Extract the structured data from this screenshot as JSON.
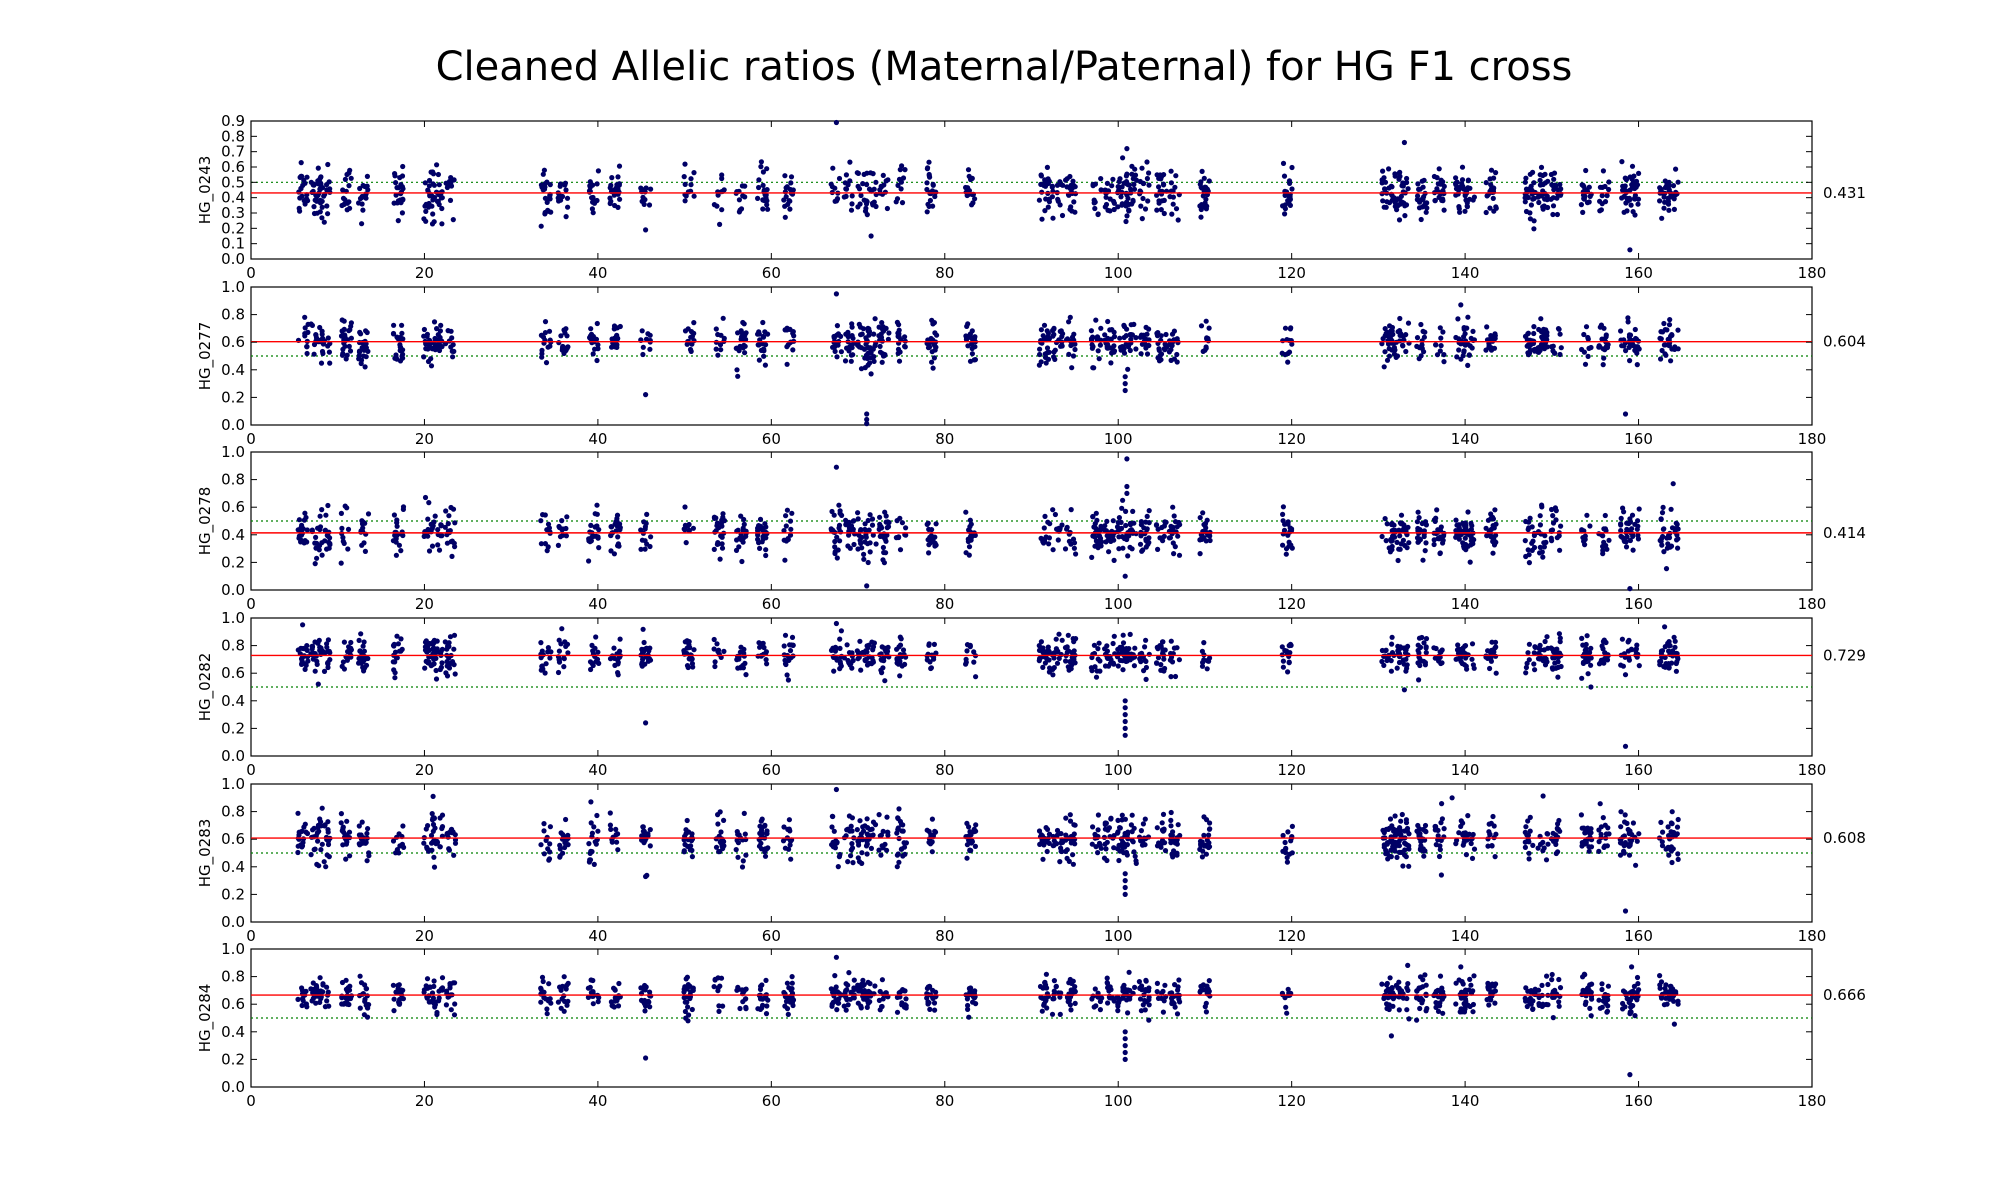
{
  "chart_data": {
    "type": "scatter",
    "title": "Cleaned Allelic ratios (Maternal/Paternal) for HG F1 cross",
    "xlim": [
      0,
      180
    ],
    "x_ticks": [
      0,
      20,
      40,
      60,
      80,
      100,
      120,
      140,
      160,
      180
    ],
    "reference_line": 0.5,
    "colors": {
      "points": "#000066",
      "mean_line": "#ff0000",
      "reference_line": "#008000"
    },
    "clusters_x": [
      6,
      7.5,
      8.5,
      11,
      13,
      17,
      20.5,
      21.5,
      23,
      34,
      36,
      39.5,
      42,
      45.5,
      50.5,
      54,
      56.5,
      59,
      62,
      67.5,
      69,
      70.5,
      71.5,
      73,
      75,
      78.5,
      83,
      91.5,
      93,
      94.5,
      97.5,
      99,
      100.5,
      101.5,
      103,
      105,
      106.5,
      110,
      119.5,
      131,
      132,
      133,
      135,
      137,
      139.5,
      140.5,
      143,
      147.5,
      149,
      150.5,
      154,
      156,
      158.5,
      159.5,
      163,
      164
    ],
    "panels": [
      {
        "sample": "HG_0243",
        "ylim": [
          0,
          0.9
        ],
        "y_ticks": [
          "0.0",
          "0.1",
          "0.2",
          "0.3",
          "0.4",
          "0.5",
          "0.6",
          "0.7",
          "0.8",
          "0.9"
        ],
        "mean": 0.431,
        "mean_label": "0.431",
        "spread": 0.09,
        "outliers": [
          [
            67.5,
            0.89
          ],
          [
            101,
            0.72
          ],
          [
            100.5,
            0.66
          ],
          [
            159,
            0.06
          ],
          [
            71.5,
            0.15
          ],
          [
            45.5,
            0.19
          ],
          [
            133,
            0.76
          ]
        ]
      },
      {
        "sample": "HG_0277",
        "ylim": [
          0,
          1.0
        ],
        "y_ticks": [
          "0.0",
          "0.2",
          "0.4",
          "0.6",
          "0.8",
          "1.0"
        ],
        "mean": 0.604,
        "mean_label": "0.604",
        "spread": 0.08,
        "outliers": [
          [
            67.5,
            0.95
          ],
          [
            45.5,
            0.22
          ],
          [
            71,
            0.08
          ],
          [
            71,
            0.04
          ],
          [
            71,
            0.01
          ],
          [
            100.8,
            0.25
          ],
          [
            100.8,
            0.3
          ],
          [
            100.8,
            0.35
          ],
          [
            158.5,
            0.08
          ],
          [
            139.5,
            0.87
          ],
          [
            71.5,
            0.37
          ]
        ]
      },
      {
        "sample": "HG_0278",
        "ylim": [
          0,
          1.0
        ],
        "y_ticks": [
          "0.0",
          "0.2",
          "0.4",
          "0.6",
          "0.8",
          "1.0"
        ],
        "mean": 0.414,
        "mean_label": "0.414",
        "spread": 0.09,
        "outliers": [
          [
            67.5,
            0.89
          ],
          [
            101,
            0.95
          ],
          [
            101,
            0.75
          ],
          [
            101,
            0.7
          ],
          [
            100.5,
            0.65
          ],
          [
            71,
            0.03
          ],
          [
            159,
            0.01
          ],
          [
            164,
            0.77
          ],
          [
            100.8,
            0.1
          ]
        ]
      },
      {
        "sample": "HG_0282",
        "ylim": [
          0,
          1.0
        ],
        "y_ticks": [
          "0.0",
          "0.2",
          "0.4",
          "0.6",
          "0.8",
          "1.0"
        ],
        "mean": 0.729,
        "mean_label": "0.729",
        "spread": 0.07,
        "outliers": [
          [
            45.5,
            0.24
          ],
          [
            100.8,
            0.15
          ],
          [
            100.8,
            0.2
          ],
          [
            100.8,
            0.25
          ],
          [
            100.8,
            0.3
          ],
          [
            100.8,
            0.35
          ],
          [
            100.8,
            0.4
          ],
          [
            158.5,
            0.07
          ],
          [
            67.5,
            0.96
          ],
          [
            154.5,
            0.5
          ],
          [
            133,
            0.48
          ]
        ]
      },
      {
        "sample": "HG_0283",
        "ylim": [
          0,
          1.0
        ],
        "y_ticks": [
          "0.0",
          "0.2",
          "0.4",
          "0.6",
          "0.8",
          "1.0"
        ],
        "mean": 0.608,
        "mean_label": "0.608",
        "spread": 0.09,
        "outliers": [
          [
            21,
            0.91
          ],
          [
            67.5,
            0.96
          ],
          [
            100.8,
            0.2
          ],
          [
            100.8,
            0.25
          ],
          [
            100.8,
            0.3
          ],
          [
            100.8,
            0.35
          ],
          [
            158.5,
            0.08
          ],
          [
            45.5,
            0.33
          ],
          [
            138.5,
            0.9
          ]
        ]
      },
      {
        "sample": "HG_0284",
        "ylim": [
          0,
          1.0
        ],
        "y_ticks": [
          "0.0",
          "0.2",
          "0.4",
          "0.6",
          "0.8",
          "1.0"
        ],
        "mean": 0.666,
        "mean_label": "0.666",
        "spread": 0.07,
        "outliers": [
          [
            45.5,
            0.21
          ],
          [
            100.8,
            0.2
          ],
          [
            100.8,
            0.25
          ],
          [
            100.8,
            0.3
          ],
          [
            100.8,
            0.35
          ],
          [
            100.8,
            0.4
          ],
          [
            159,
            0.09
          ],
          [
            67.5,
            0.94
          ],
          [
            139.5,
            0.87
          ],
          [
            131.5,
            0.37
          ]
        ]
      }
    ]
  }
}
